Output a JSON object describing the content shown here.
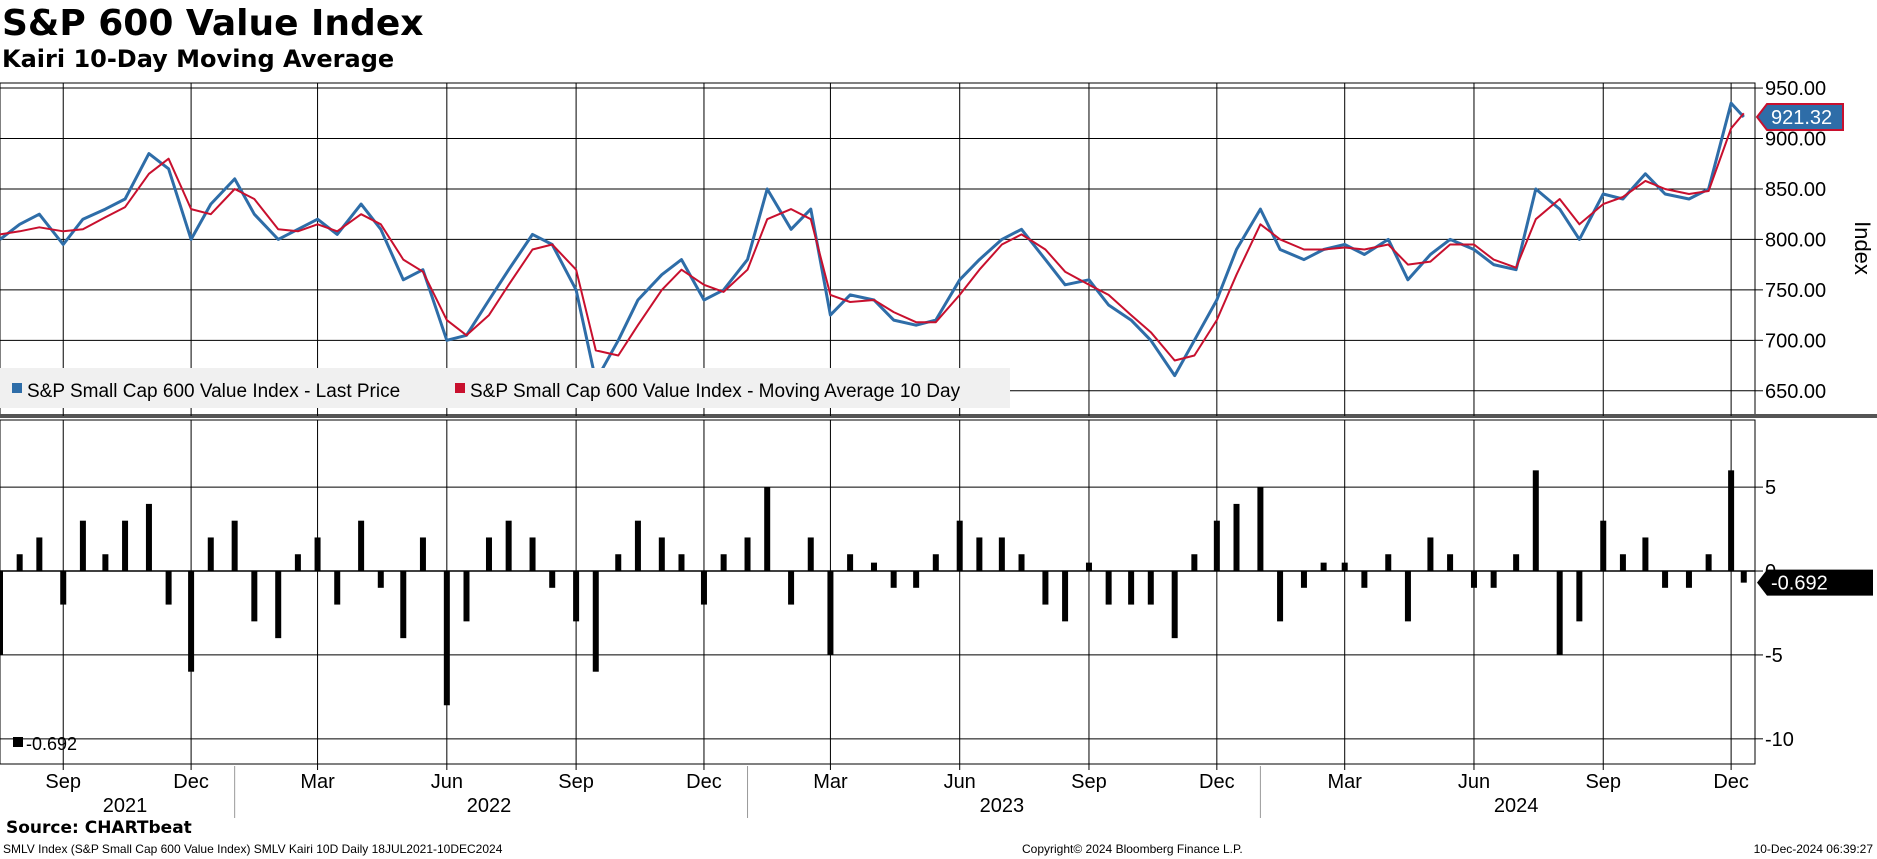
{
  "header": {
    "title": "S&P 600 Value Index",
    "subtitle": "Kairi 10-Day Moving Average"
  },
  "footer": {
    "source": "Source: CHARTbeat",
    "description": "SMLV Index (S&P Small Cap 600 Value Index) SMLV Kairi 10D  Daily 18JUL2021-10DEC2024",
    "copyright": "Copyright© 2024 Bloomberg Finance L.P.",
    "timestamp": "10-Dec-2024 06:39:27"
  },
  "colors": {
    "price": "#2e6da8",
    "moving_average": "#c8102e",
    "kairi_bars": "#000000",
    "grid": "#000000",
    "legend_bg": "#f0f0f0"
  },
  "chart_data": [
    {
      "type": "line",
      "panel": "top",
      "ylabel": "Index",
      "ylim": [
        625,
        955
      ],
      "yticks": [
        650,
        700,
        750,
        800,
        850,
        900,
        950
      ],
      "ytick_labels": [
        "650.00",
        "700.00",
        "750.00",
        "800.00",
        "850.00",
        "900.00",
        "950.00"
      ],
      "last_value_label": "921.32",
      "grid": true,
      "legend_position": "bottom-left",
      "x": [
        "2021-07-18",
        "2021-08-01",
        "2021-08-15",
        "2021-09-01",
        "2021-09-15",
        "2021-10-01",
        "2021-10-15",
        "2021-11-01",
        "2021-11-15",
        "2021-12-01",
        "2021-12-15",
        "2022-01-01",
        "2022-01-15",
        "2022-02-01",
        "2022-02-15",
        "2022-03-01",
        "2022-03-15",
        "2022-04-01",
        "2022-04-15",
        "2022-05-01",
        "2022-05-15",
        "2022-06-01",
        "2022-06-15",
        "2022-07-01",
        "2022-07-15",
        "2022-08-01",
        "2022-08-15",
        "2022-09-01",
        "2022-09-15",
        "2022-10-01",
        "2022-10-15",
        "2022-11-01",
        "2022-11-15",
        "2022-12-01",
        "2022-12-15",
        "2023-01-01",
        "2023-01-15",
        "2023-02-01",
        "2023-02-15",
        "2023-03-01",
        "2023-03-15",
        "2023-04-01",
        "2023-04-15",
        "2023-05-01",
        "2023-05-15",
        "2023-06-01",
        "2023-06-15",
        "2023-07-01",
        "2023-07-15",
        "2023-08-01",
        "2023-08-15",
        "2023-09-01",
        "2023-09-15",
        "2023-10-01",
        "2023-10-15",
        "2023-11-01",
        "2023-11-15",
        "2023-12-01",
        "2023-12-15",
        "2024-01-01",
        "2024-01-15",
        "2024-02-01",
        "2024-02-15",
        "2024-03-01",
        "2024-03-15",
        "2024-04-01",
        "2024-04-15",
        "2024-05-01",
        "2024-05-15",
        "2024-06-01",
        "2024-06-15",
        "2024-07-01",
        "2024-07-15",
        "2024-08-01",
        "2024-08-15",
        "2024-09-01",
        "2024-09-15",
        "2024-10-01",
        "2024-10-15",
        "2024-11-01",
        "2024-11-15",
        "2024-12-01",
        "2024-12-10"
      ],
      "series": [
        {
          "name": "S&P Small Cap 600 Value Index - Last Price",
          "values": [
            800,
            815,
            825,
            795,
            820,
            830,
            840,
            885,
            870,
            800,
            835,
            860,
            825,
            800,
            810,
            820,
            805,
            835,
            810,
            760,
            770,
            700,
            705,
            740,
            770,
            805,
            795,
            750,
            660,
            700,
            740,
            765,
            780,
            740,
            750,
            780,
            850,
            810,
            830,
            725,
            745,
            740,
            720,
            715,
            720,
            760,
            780,
            800,
            810,
            780,
            755,
            760,
            735,
            720,
            700,
            665,
            700,
            740,
            790,
            830,
            790,
            780,
            790,
            795,
            785,
            800,
            760,
            785,
            800,
            790,
            775,
            770,
            850,
            830,
            800,
            845,
            840,
            865,
            845,
            840,
            850,
            935,
            921.32
          ]
        },
        {
          "name": "S&P Small Cap 600 Value Index - Moving Average 10 Day",
          "values": [
            805,
            808,
            812,
            808,
            810,
            822,
            832,
            865,
            880,
            830,
            825,
            850,
            840,
            810,
            808,
            815,
            808,
            825,
            815,
            780,
            768,
            720,
            705,
            725,
            755,
            790,
            795,
            770,
            690,
            685,
            715,
            750,
            770,
            755,
            748,
            770,
            820,
            830,
            820,
            745,
            738,
            740,
            728,
            718,
            718,
            745,
            770,
            795,
            805,
            790,
            768,
            755,
            745,
            725,
            708,
            680,
            685,
            720,
            765,
            815,
            800,
            790,
            790,
            792,
            790,
            795,
            775,
            778,
            795,
            795,
            780,
            772,
            820,
            840,
            815,
            835,
            842,
            858,
            850,
            845,
            848,
            910,
            925
          ]
        }
      ]
    },
    {
      "type": "bar",
      "panel": "bottom",
      "name": "Kairi 10-Day Moving Average",
      "ylim": [
        -11.5,
        9
      ],
      "yticks": [
        -10,
        -5,
        0,
        5
      ],
      "ytick_labels": [
        "-10",
        "-5",
        "0",
        "5"
      ],
      "last_value_label": "-0.692",
      "legend_label": "-0.692",
      "x": [
        "2021-07-18",
        "2021-08-01",
        "2021-08-15",
        "2021-09-01",
        "2021-09-15",
        "2021-10-01",
        "2021-10-15",
        "2021-11-01",
        "2021-11-15",
        "2021-12-01",
        "2021-12-15",
        "2022-01-01",
        "2022-01-15",
        "2022-02-01",
        "2022-02-15",
        "2022-03-01",
        "2022-03-15",
        "2022-04-01",
        "2022-04-15",
        "2022-05-01",
        "2022-05-15",
        "2022-06-01",
        "2022-06-15",
        "2022-07-01",
        "2022-07-15",
        "2022-08-01",
        "2022-08-15",
        "2022-09-01",
        "2022-09-15",
        "2022-10-01",
        "2022-10-15",
        "2022-11-01",
        "2022-11-15",
        "2022-12-01",
        "2022-12-15",
        "2023-01-01",
        "2023-01-15",
        "2023-02-01",
        "2023-02-15",
        "2023-03-01",
        "2023-03-15",
        "2023-04-01",
        "2023-04-15",
        "2023-05-01",
        "2023-05-15",
        "2023-06-01",
        "2023-06-15",
        "2023-07-01",
        "2023-07-15",
        "2023-08-01",
        "2023-08-15",
        "2023-09-01",
        "2023-09-15",
        "2023-10-01",
        "2023-10-15",
        "2023-11-01",
        "2023-11-15",
        "2023-12-01",
        "2023-12-15",
        "2024-01-01",
        "2024-01-15",
        "2024-02-01",
        "2024-02-15",
        "2024-03-01",
        "2024-03-15",
        "2024-04-01",
        "2024-04-15",
        "2024-05-01",
        "2024-05-15",
        "2024-06-01",
        "2024-06-15",
        "2024-07-01",
        "2024-07-15",
        "2024-08-01",
        "2024-08-15",
        "2024-09-01",
        "2024-09-15",
        "2024-10-01",
        "2024-10-15",
        "2024-11-01",
        "2024-11-15",
        "2024-12-01",
        "2024-12-10"
      ],
      "values": [
        -5,
        1,
        2,
        -2,
        3,
        1,
        3,
        4,
        -2,
        -6,
        2,
        3,
        -3,
        -4,
        1,
        2,
        -2,
        3,
        -1,
        -4,
        2,
        -8,
        -3,
        2,
        3,
        2,
        -1,
        -3,
        -6,
        1,
        3,
        2,
        1,
        -2,
        1,
        2,
        5,
        -2,
        2,
        -5,
        1,
        0.5,
        -1,
        -1,
        1,
        3,
        2,
        2,
        1,
        -2,
        -3,
        0.5,
        -2,
        -2,
        -2,
        -4,
        1,
        3,
        4,
        5,
        -3,
        -1,
        0.5,
        0.5,
        -1,
        1,
        -3,
        2,
        1,
        -1,
        -1,
        1,
        6,
        -5,
        -3,
        3,
        1,
        2,
        -1,
        -1,
        1,
        6,
        -0.692
      ]
    }
  ],
  "x_axis": {
    "month_labels": [
      {
        "label": "Sep",
        "date": "2021-09-01"
      },
      {
        "label": "Dec",
        "date": "2021-12-01"
      },
      {
        "label": "Mar",
        "date": "2022-03-01"
      },
      {
        "label": "Jun",
        "date": "2022-06-01"
      },
      {
        "label": "Sep",
        "date": "2022-09-01"
      },
      {
        "label": "Dec",
        "date": "2022-12-01"
      },
      {
        "label": "Mar",
        "date": "2023-03-01"
      },
      {
        "label": "Jun",
        "date": "2023-06-01"
      },
      {
        "label": "Sep",
        "date": "2023-09-01"
      },
      {
        "label": "Dec",
        "date": "2023-12-01"
      },
      {
        "label": "Mar",
        "date": "2024-03-01"
      },
      {
        "label": "Jun",
        "date": "2024-06-01"
      },
      {
        "label": "Sep",
        "date": "2024-09-01"
      },
      {
        "label": "Dec",
        "date": "2024-12-01"
      }
    ],
    "year_labels": [
      {
        "label": "2021",
        "date": "2021-10-15"
      },
      {
        "label": "2022",
        "date": "2022-07-01"
      },
      {
        "label": "2023",
        "date": "2023-07-01"
      },
      {
        "label": "2024",
        "date": "2024-07-01"
      }
    ],
    "year_separators": [
      "2022-01-01",
      "2023-01-01",
      "2024-01-01"
    ]
  }
}
